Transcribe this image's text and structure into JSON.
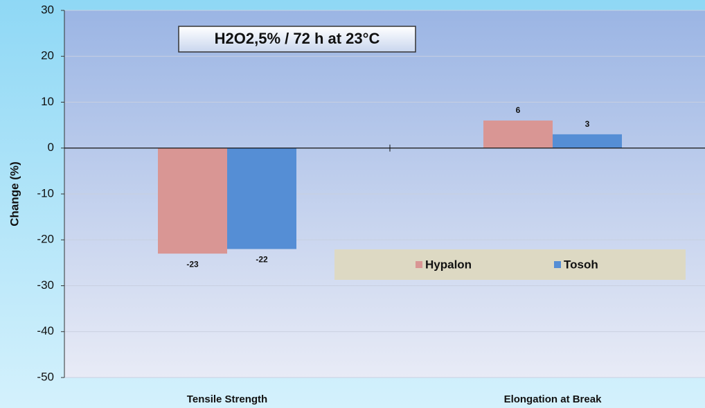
{
  "chart_data": {
    "type": "bar",
    "annotation": "H2O2,5% / 72 h at 23°C",
    "y_label": "Change (%)",
    "categories": [
      "Tensile Strength",
      "Elongation at Break"
    ],
    "series": [
      {
        "name": "Hypalon",
        "color": "#d99694",
        "values": [
          -23,
          6
        ]
      },
      {
        "name": "Tosoh",
        "color": "#558ed5",
        "values": [
          -22,
          3
        ]
      }
    ],
    "ylim": [
      -50,
      30
    ],
    "yticks": [
      -50,
      -40,
      -30,
      -20,
      -10,
      0,
      10,
      20,
      30
    ],
    "grid": true,
    "legend": "lower right",
    "data_labels": true
  }
}
